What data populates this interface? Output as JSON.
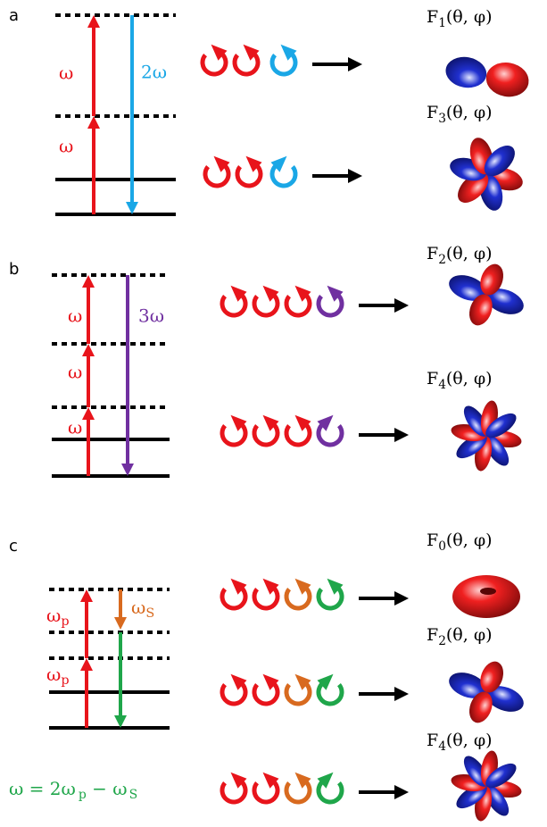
{
  "panels": [
    {
      "label": "a",
      "pump_labels": [
        "ω",
        "ω"
      ],
      "emission_label": "2ω",
      "rows": [
        {
          "function": {
            "symbol": "F",
            "index": "1",
            "args": "(θ, φ)"
          }
        },
        {
          "function": {
            "symbol": "F",
            "index": "3",
            "args": "(θ, φ)"
          }
        }
      ]
    },
    {
      "label": "b",
      "pump_labels": [
        "ω",
        "ω",
        "ω"
      ],
      "emission_label": "3ω",
      "rows": [
        {
          "function": {
            "symbol": "F",
            "index": "2",
            "args": "(θ, φ)"
          }
        },
        {
          "function": {
            "symbol": "F",
            "index": "4",
            "args": "(θ, φ)"
          }
        }
      ]
    },
    {
      "label": "c",
      "pump_labels": [
        {
          "symbol": "ω",
          "index": "p"
        },
        {
          "symbol": "ω",
          "index": "p"
        }
      ],
      "stokes_label": {
        "symbol": "ω",
        "index": "S"
      },
      "rows": [
        {
          "function": {
            "symbol": "F",
            "index": "0",
            "args": "(θ, φ)"
          }
        },
        {
          "function": {
            "symbol": "F",
            "index": "2",
            "args": "(θ, φ)"
          }
        },
        {
          "function": {
            "symbol": "F",
            "index": "4",
            "args": "(θ, φ)"
          }
        }
      ],
      "equation": {
        "lhs": "ω = 2ω",
        "index": "p",
        "rhs": " − ω",
        "index2": "S"
      }
    }
  ]
}
